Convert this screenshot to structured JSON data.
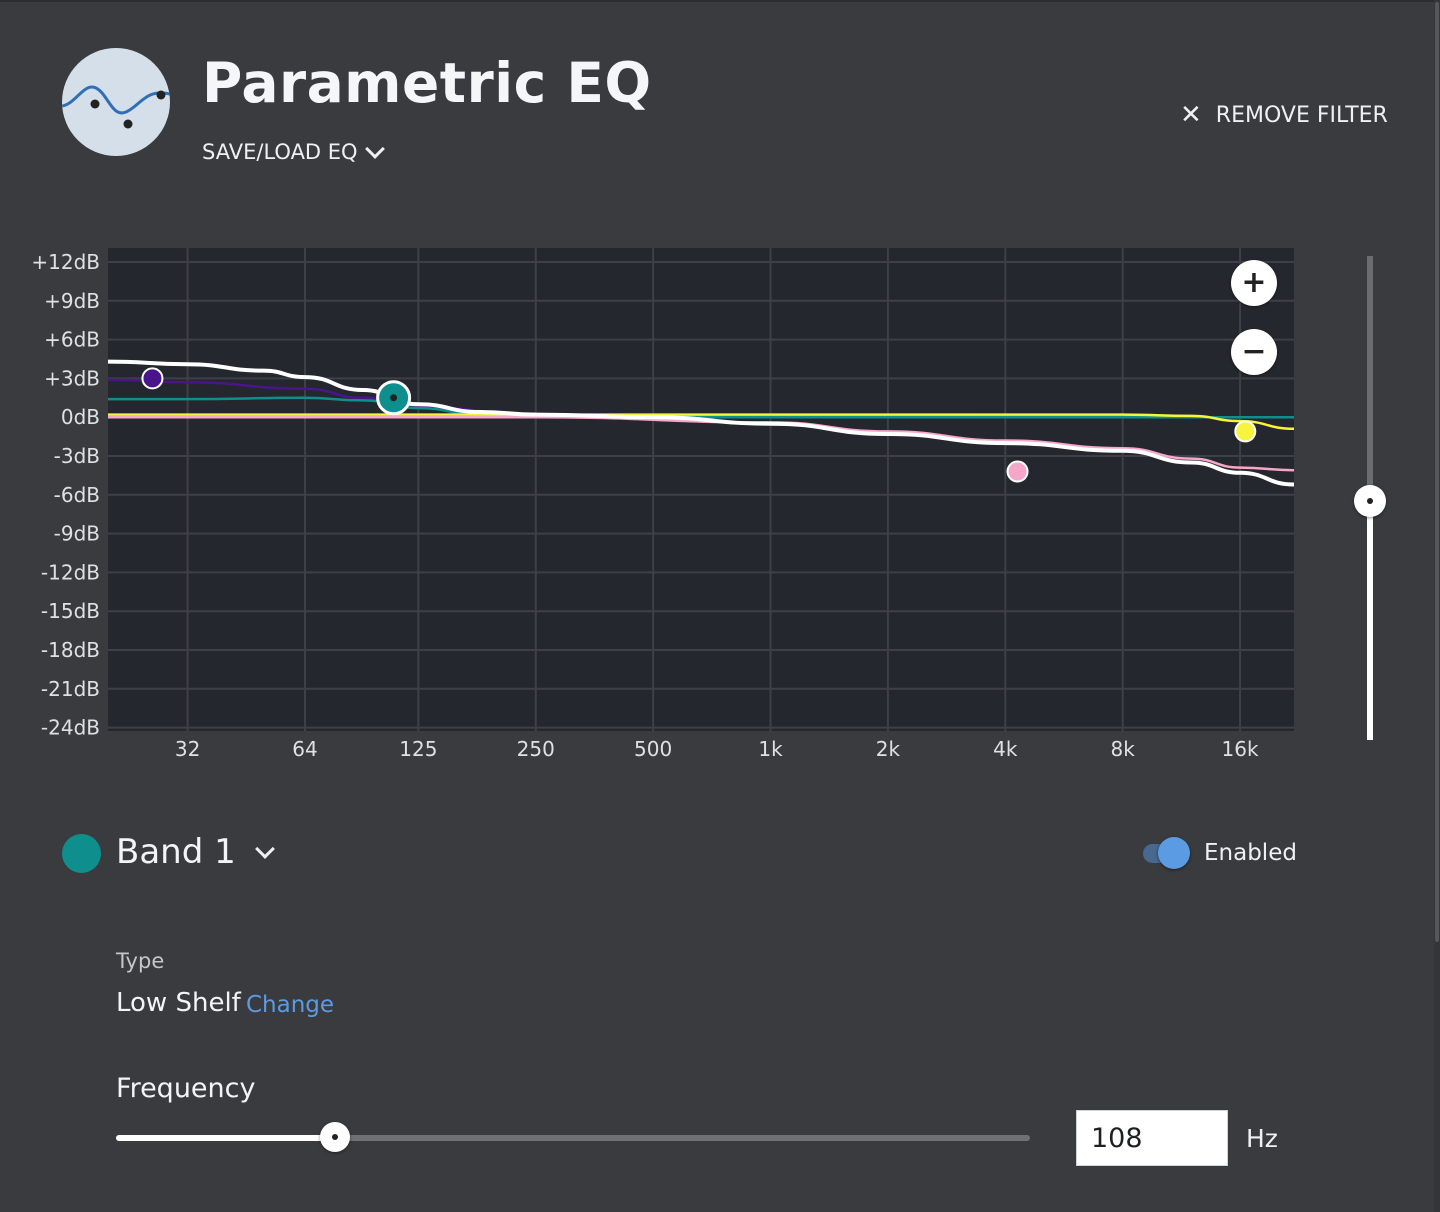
{
  "header": {
    "title": "Parametric EQ",
    "save_load_label": "SAVE/LOAD EQ",
    "remove_filter_label": "REMOVE FILTER",
    "logo_icon": "eq-curve-icon"
  },
  "chart_data": {
    "type": "line",
    "title": "",
    "xscale": "log",
    "xlim": [
      20,
      22000
    ],
    "ylim": [
      -24,
      12
    ],
    "x_ticks": [
      32,
      64,
      125,
      250,
      500,
      1000,
      2000,
      4000,
      8000,
      16000
    ],
    "x_tick_labels": [
      "32",
      "64",
      "125",
      "250",
      "500",
      "1k",
      "2k",
      "4k",
      "8k",
      "16k"
    ],
    "y_ticks": [
      12,
      9,
      6,
      3,
      0,
      -3,
      -6,
      -9,
      -12,
      -15,
      -18,
      -21,
      -24
    ],
    "y_tick_labels": [
      "+12dB",
      "+9dB",
      "+6dB",
      "+3dB",
      "0dB",
      "-3dB",
      "-6dB",
      "-9dB",
      "-12dB",
      "-15dB",
      "-18dB",
      "-21dB",
      "-24dB"
    ],
    "grid": true,
    "band_markers": [
      {
        "band": "Band 1",
        "freq": 108,
        "gain": 1.5,
        "color": "#0e8f8e",
        "selected": true
      },
      {
        "band": "Band 2",
        "freq": 26,
        "gain": 3.0,
        "color": "#4a148c",
        "selected": false
      },
      {
        "band": "Band 3",
        "freq": 4300,
        "gain": -4.2,
        "color": "#f4a7c8",
        "selected": false
      },
      {
        "band": "Band 4",
        "freq": 16500,
        "gain": -1.1,
        "color": "#f6f53c",
        "selected": false
      }
    ],
    "series": [
      {
        "color": "#ffffff",
        "role": "combined",
        "x": [
          20,
          32,
          50,
          64,
          90,
          125,
          180,
          250,
          500,
          1000,
          2000,
          4000,
          8000,
          12000,
          16000,
          22000
        ],
        "y": [
          4.3,
          4.1,
          3.6,
          3.1,
          2.1,
          1.0,
          0.4,
          0.2,
          0.0,
          -0.5,
          -1.3,
          -2.0,
          -2.6,
          -3.5,
          -4.3,
          -5.2
        ]
      },
      {
        "color": "#4a148c",
        "role": "band",
        "x": [
          20,
          32,
          64,
          90,
          125,
          250,
          500,
          1000,
          4000,
          16000,
          22000
        ],
        "y": [
          2.9,
          2.7,
          2.2,
          1.5,
          0.8,
          0.2,
          0.1,
          0.1,
          0.0,
          0.0,
          0.0
        ]
      },
      {
        "color": "#0e8f8e",
        "role": "band",
        "x": [
          20,
          32,
          64,
          90,
          125,
          180,
          250,
          500,
          1000,
          22000
        ],
        "y": [
          1.4,
          1.4,
          1.5,
          1.3,
          0.7,
          0.2,
          0.05,
          0.0,
          0.0,
          0.0
        ]
      },
      {
        "color": "#f4a7c8",
        "role": "band",
        "x": [
          20,
          250,
          1000,
          2000,
          4000,
          8000,
          12000,
          16000,
          22000
        ],
        "y": [
          0.0,
          0.0,
          -0.4,
          -1.1,
          -1.8,
          -2.4,
          -3.2,
          -3.9,
          -4.1
        ]
      },
      {
        "color": "#f6f53c",
        "role": "band",
        "x": [
          20,
          1000,
          8000,
          12000,
          16000,
          22000
        ],
        "y": [
          0.2,
          0.2,
          0.2,
          0.1,
          -0.3,
          -0.9
        ]
      }
    ]
  },
  "zoom": {
    "in_icon": "plus-icon",
    "out_icon": "minus-icon"
  },
  "gain_slider": {
    "value_db": -6.2,
    "min_db": -24,
    "max_db": 12
  },
  "band": {
    "name": "Band 1",
    "color": "#0e8f8e",
    "enabled_label": "Enabled",
    "enabled": true,
    "type_label": "Type",
    "type_value": "Low Shelf",
    "change_label": "Change",
    "frequency_label": "Frequency",
    "frequency_value": "108",
    "frequency_unit": "Hz",
    "frequency_slider_fraction": 0.24
  }
}
